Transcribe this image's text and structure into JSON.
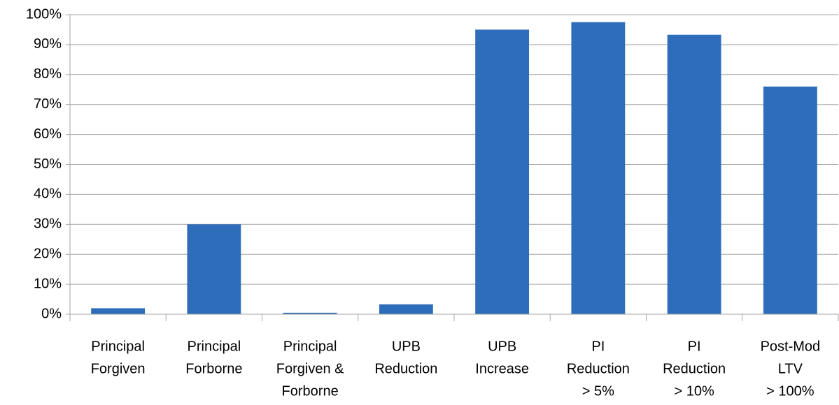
{
  "chart_data": {
    "type": "bar",
    "categories": [
      [
        "Principal",
        "Forgiven"
      ],
      [
        "Principal",
        "Forborne"
      ],
      [
        "Principal",
        "Forgiven &",
        "Forborne"
      ],
      [
        "UPB",
        "Reduction"
      ],
      [
        "UPB",
        "Increase"
      ],
      [
        "PI",
        "Reduction",
        "> 5%"
      ],
      [
        "PI",
        "Reduction",
        "> 10%"
      ],
      [
        "Post-Mod",
        "LTV",
        "> 100%"
      ]
    ],
    "values": [
      2,
      30,
      0.5,
      3.3,
      95,
      97.5,
      93.3,
      76
    ],
    "color": "#2e6dba",
    "ylim": [
      0,
      100
    ],
    "yticks": [
      {
        "value": 0,
        "label": "0%"
      },
      {
        "value": 10,
        "label": "10%"
      },
      {
        "value": 20,
        "label": "20%"
      },
      {
        "value": 30,
        "label": "30%"
      },
      {
        "value": 40,
        "label": "40%"
      },
      {
        "value": 50,
        "label": "50%"
      },
      {
        "value": 60,
        "label": "60%"
      },
      {
        "value": 70,
        "label": "70%"
      },
      {
        "value": 80,
        "label": "80%"
      },
      {
        "value": 90,
        "label": "90%"
      },
      {
        "value": 100,
        "label": "100%"
      }
    ],
    "grid": true
  }
}
